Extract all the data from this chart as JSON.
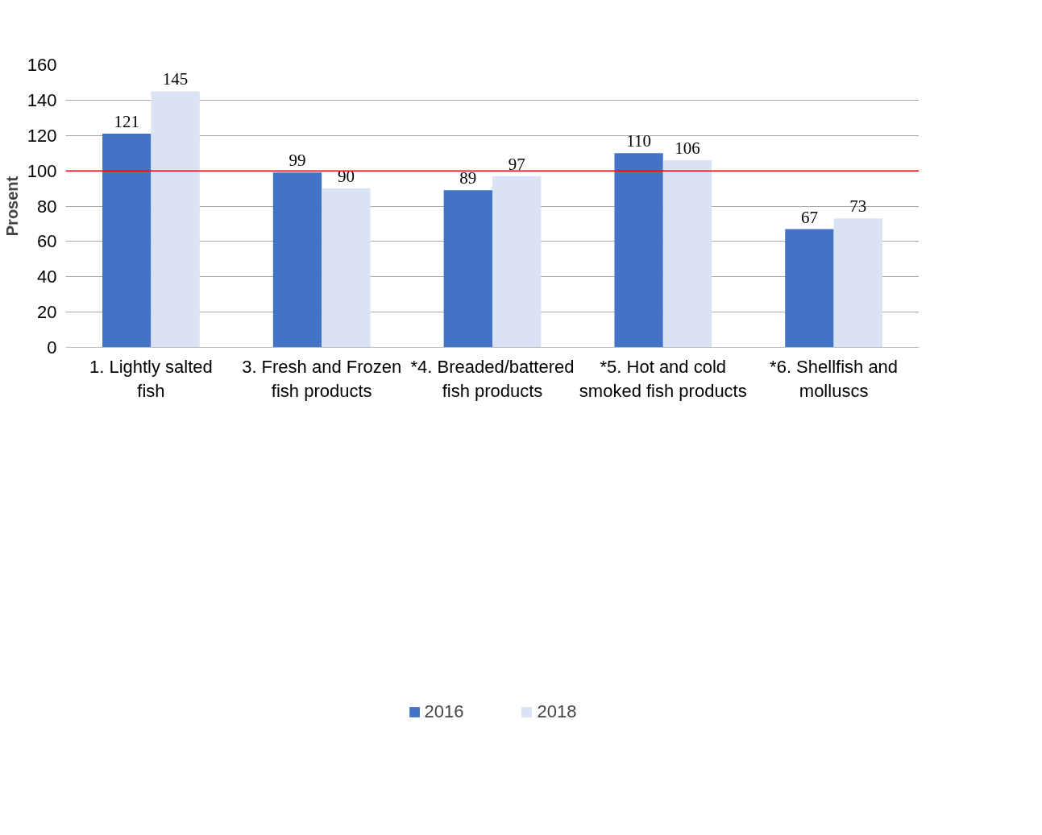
{
  "chart_data": {
    "type": "bar",
    "ylabel": "Prosent",
    "categories": [
      "1. Lightly salted fish",
      "3. Fresh and Frozen fish products",
      "*4. Breaded/battered fish products",
      "*5. Hot and cold smoked fish products",
      "*6. Shellfish and molluscs"
    ],
    "series": [
      {
        "name": "2016",
        "color": "#4472c4",
        "values": [
          121,
          99,
          89,
          110,
          67
        ]
      },
      {
        "name": "2018",
        "color": "#dae3f3",
        "values": [
          145,
          90,
          97,
          106,
          73
        ]
      }
    ],
    "ylim": [
      0,
      160
    ],
    "yticks": [
      0,
      20,
      40,
      60,
      80,
      100,
      120,
      140,
      160
    ],
    "ref_lines": [
      {
        "axis": "y",
        "value": 100,
        "color": "#ff0000"
      }
    ],
    "data_labels": true,
    "grid": "y",
    "legend": "bottom"
  }
}
